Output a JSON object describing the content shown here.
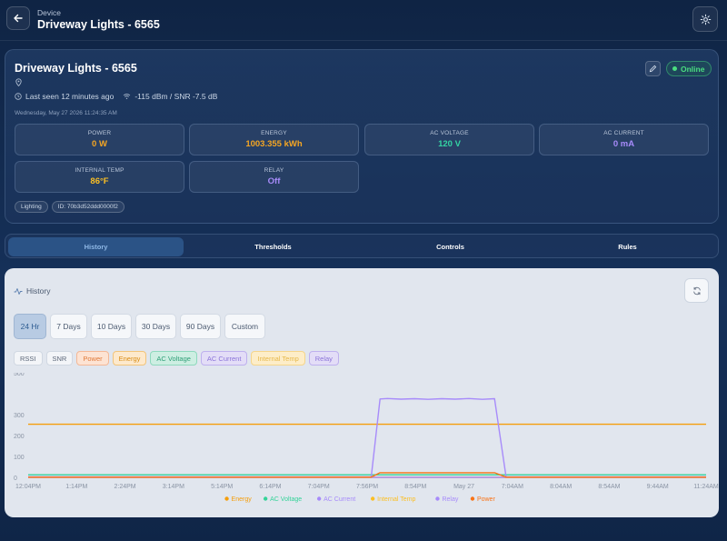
{
  "header": {
    "subtitle": "Device",
    "title": "Driveway Lights - 6565"
  },
  "device": {
    "name": "Driveway Lights - 6565",
    "status": "Online",
    "last_seen": "Last seen 12 minutes ago",
    "signal": "-115 dBm / SNR -7.5 dB",
    "timestamp": "Wednesday, May 27 2026 11:24:35 AM",
    "tiles": [
      {
        "label": "POWER",
        "value": "0 W"
      },
      {
        "label": "ENERGY",
        "value": "1003.355 kWh"
      },
      {
        "label": "AC VOLTAGE",
        "value": "120 V"
      },
      {
        "label": "AC CURRENT",
        "value": "0 mA"
      },
      {
        "label": "INTERNAL TEMP",
        "value": "86°F"
      },
      {
        "label": "RELAY",
        "value": "Off"
      }
    ],
    "tags": [
      "Lighting",
      "ID: 70b3d52ddd0000f2"
    ]
  },
  "tabs": [
    "History",
    "Thresholds",
    "Controls",
    "Rules"
  ],
  "history": {
    "title": "History",
    "ranges": [
      "24 Hr",
      "7 Days",
      "10 Days",
      "30 Days",
      "90 Days",
      "Custom"
    ],
    "active_range": "24 Hr",
    "series_toggles": [
      "RSSI",
      "SNR",
      "Power",
      "Energy",
      "AC Voltage",
      "AC Current",
      "Internal Temp",
      "Relay"
    ]
  },
  "colors": {
    "energy": "#f59e0b",
    "voltage": "#34d399",
    "current": "#a78bfa",
    "temp": "#fbbf24",
    "relay": "#a78bfa",
    "power": "#f97316"
  },
  "chart_data": {
    "type": "line",
    "ylim": [
      0,
      500
    ],
    "yticks": [
      0,
      100,
      200,
      300,
      500
    ],
    "xticks": [
      "12:04PM",
      "1:14PM",
      "2:24PM",
      "3:14PM",
      "5:14PM",
      "6:14PM",
      "7:04PM",
      "7:56PM",
      "8:54PM",
      "May 27",
      "7:04AM",
      "8:04AM",
      "8:54AM",
      "9:44AM",
      "11:24AM"
    ],
    "x_range": [
      0,
      100
    ],
    "legend": [
      "Energy",
      "AC Voltage",
      "AC Current",
      "Internal Temp",
      "Relay",
      "Power"
    ],
    "legend_position": "bottom",
    "series": [
      {
        "name": "Energy",
        "color": "#f59e0b",
        "points": [
          [
            0,
            254
          ],
          [
            100,
            254
          ]
        ]
      },
      {
        "name": "AC Voltage",
        "color": "#34d399",
        "points": [
          [
            0,
            12
          ],
          [
            100,
            12
          ]
        ]
      },
      {
        "name": "AC Current",
        "color": "#a78bfa",
        "points": [
          [
            0,
            2
          ],
          [
            50.6,
            2
          ],
          [
            51.9,
            375
          ],
          [
            53,
            377
          ],
          [
            55,
            374
          ],
          [
            57,
            376
          ],
          [
            59,
            373
          ],
          [
            61,
            376
          ],
          [
            63,
            374
          ],
          [
            65,
            377
          ],
          [
            67,
            373
          ],
          [
            68.8,
            376
          ],
          [
            70.5,
            2
          ],
          [
            100,
            2
          ]
        ]
      },
      {
        "name": "Internal Temp",
        "color": "#fbbf24",
        "points": [
          [
            0,
            0
          ],
          [
            100,
            0
          ]
        ]
      },
      {
        "name": "Relay",
        "color": "#a78bfa",
        "points": [
          [
            0,
            0
          ],
          [
            100,
            0
          ]
        ]
      },
      {
        "name": "Power",
        "color": "#f97316",
        "points": [
          [
            0,
            1
          ],
          [
            50.6,
            1
          ],
          [
            51.9,
            22
          ],
          [
            55,
            22
          ],
          [
            60,
            22
          ],
          [
            65,
            22
          ],
          [
            68.8,
            22
          ],
          [
            70.5,
            1
          ],
          [
            100,
            1
          ]
        ]
      }
    ]
  }
}
